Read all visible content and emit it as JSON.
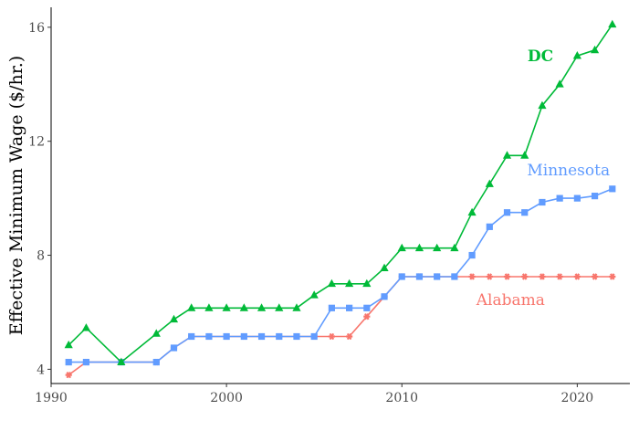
{
  "chart_data": {
    "type": "line",
    "title": "",
    "xlabel": "",
    "ylabel": "Effective Minimum Wage ($/hr.)",
    "xlim": [
      1990,
      2023
    ],
    "ylim": [
      3.5,
      16.7
    ],
    "xticks": [
      1990,
      2000,
      2010,
      2020
    ],
    "yticks": [
      4,
      8,
      12,
      16
    ],
    "grid": false,
    "legend": "none",
    "series": [
      {
        "name": "Alabama",
        "color": "#F8766D",
        "marker": "asterisk",
        "x": [
          1991,
          1992,
          1994,
          1996,
          1997,
          1998,
          1999,
          2000,
          2001,
          2002,
          2003,
          2004,
          2005,
          2006,
          2007,
          2008,
          2009,
          2010,
          2011,
          2012,
          2013,
          2014,
          2015,
          2016,
          2017,
          2018,
          2019,
          2020,
          2021,
          2022
        ],
        "values": [
          3.8,
          4.25,
          4.25,
          4.25,
          4.75,
          5.15,
          5.15,
          5.15,
          5.15,
          5.15,
          5.15,
          5.15,
          5.15,
          5.15,
          5.15,
          5.85,
          6.55,
          7.25,
          7.25,
          7.25,
          7.25,
          7.25,
          7.25,
          7.25,
          7.25,
          7.25,
          7.25,
          7.25,
          7.25,
          7.25
        ]
      },
      {
        "name": "Minnesota",
        "color": "#619CFF",
        "marker": "square",
        "x": [
          1991,
          1992,
          1994,
          1996,
          1997,
          1998,
          1999,
          2000,
          2001,
          2002,
          2003,
          2004,
          2005,
          2006,
          2007,
          2008,
          2009,
          2010,
          2011,
          2012,
          2013,
          2014,
          2015,
          2016,
          2017,
          2018,
          2019,
          2020,
          2021,
          2022
        ],
        "values": [
          4.25,
          4.25,
          4.25,
          4.25,
          4.75,
          5.15,
          5.15,
          5.15,
          5.15,
          5.15,
          5.15,
          5.15,
          5.15,
          6.15,
          6.15,
          6.15,
          6.55,
          7.25,
          7.25,
          7.25,
          7.25,
          8.0,
          9.0,
          9.5,
          9.5,
          9.86,
          10.0,
          10.0,
          10.08,
          10.33
        ]
      },
      {
        "name": "DC",
        "color": "#00BA38",
        "marker": "triangle",
        "x": [
          1991,
          1992,
          1994,
          1996,
          1997,
          1998,
          1999,
          2000,
          2001,
          2002,
          2003,
          2004,
          2005,
          2006,
          2007,
          2008,
          2009,
          2010,
          2011,
          2012,
          2013,
          2014,
          2015,
          2016,
          2017,
          2018,
          2019,
          2020,
          2021,
          2022
        ],
        "values": [
          4.85,
          5.45,
          4.25,
          5.25,
          5.75,
          6.15,
          6.15,
          6.15,
          6.15,
          6.15,
          6.15,
          6.15,
          6.6,
          7.0,
          7.0,
          7.0,
          7.55,
          8.25,
          8.25,
          8.25,
          8.25,
          9.5,
          10.5,
          11.5,
          11.5,
          13.25,
          14.0,
          15.0,
          15.2,
          16.1
        ]
      }
    ],
    "annotations": [
      {
        "text": "DC",
        "x": 2017.9,
        "y": 15.0,
        "color": "#00BA38",
        "weight": "bold"
      },
      {
        "text": "Minnesota",
        "x": 2019.5,
        "y": 11.0,
        "color": "#619CFF",
        "weight": "normal"
      },
      {
        "text": "Alabama",
        "x": 2016.2,
        "y": 6.45,
        "color": "#F8766D",
        "weight": "normal"
      }
    ]
  }
}
